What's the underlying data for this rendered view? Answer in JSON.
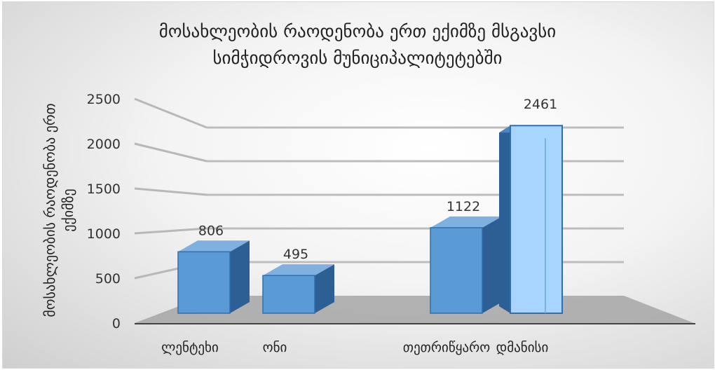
{
  "chart_data": {
    "type": "bar",
    "title_lines": [
      "მოსახლეობის რაოდენობა ერთ ექიმზე მსგავსი",
      "სიმჭიდროვის მუნიციპალიტეტებში"
    ],
    "ylabel": "მოსახლეობის რაოდენობა ერთ ექიმზე",
    "xlabel": "",
    "categories": [
      "ლენტეხი",
      "ონი",
      "თეთრიწყარო",
      "დმანისი"
    ],
    "values": [
      806,
      495,
      1122,
      2461
    ],
    "data_labels": [
      "806",
      "495",
      "1122",
      "2461"
    ],
    "yticks": [
      "0",
      "500",
      "1000",
      "1500",
      "2000",
      "2500"
    ],
    "ylim": [
      0,
      2500
    ],
    "grid": true,
    "legend": "none",
    "style": "3d-column",
    "colors": {
      "bar_front": "#5b9bd5",
      "bar_side": "#2e5f94",
      "bar_top": "#7fb0e0",
      "bar_light": "#a7d5ff"
    }
  }
}
